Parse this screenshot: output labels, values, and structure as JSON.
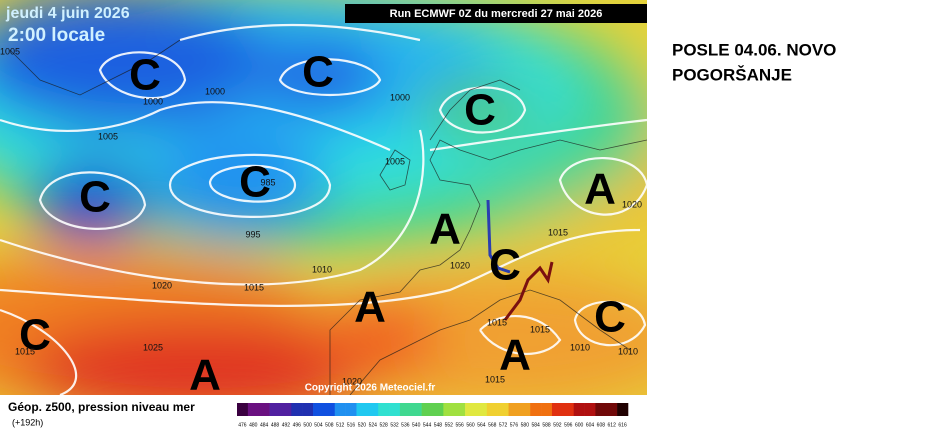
{
  "header": {
    "date": "jeudi 4 juin 2026",
    "time": "2:00 locale",
    "run": "Run ECMWF 0Z du mercredi 27 mai 2026"
  },
  "note": {
    "lines": [
      "POSLE 04.06. NOVO",
      "POGORŠANJE"
    ]
  },
  "map": {
    "systems": [
      "C",
      "C",
      "C",
      "C",
      "C",
      "A",
      "A",
      "C",
      "A",
      "C",
      "C",
      "A",
      "A"
    ],
    "isobars": [
      "1005",
      "1000",
      "1000",
      "1000",
      "1005",
      "1005",
      "985",
      "995",
      "1010",
      "1020",
      "1015",
      "1020",
      "1015",
      "1020",
      "1025",
      "1015",
      "1015",
      "1015",
      "1010",
      "1010",
      "1015",
      "1020"
    ],
    "copyright": "Copyright 2026 Meteociel.fr"
  },
  "legend": {
    "title": "Géop. z500, pression niveau mer",
    "lead": "(+192h)",
    "scale": [
      476,
      480,
      484,
      488,
      492,
      496,
      500,
      504,
      508,
      512,
      516,
      520,
      524,
      528,
      532,
      536,
      540,
      544,
      548,
      552,
      556,
      560,
      564,
      568,
      572,
      576,
      580,
      584,
      588,
      592,
      596,
      600,
      604,
      608,
      612,
      616
    ]
  }
}
